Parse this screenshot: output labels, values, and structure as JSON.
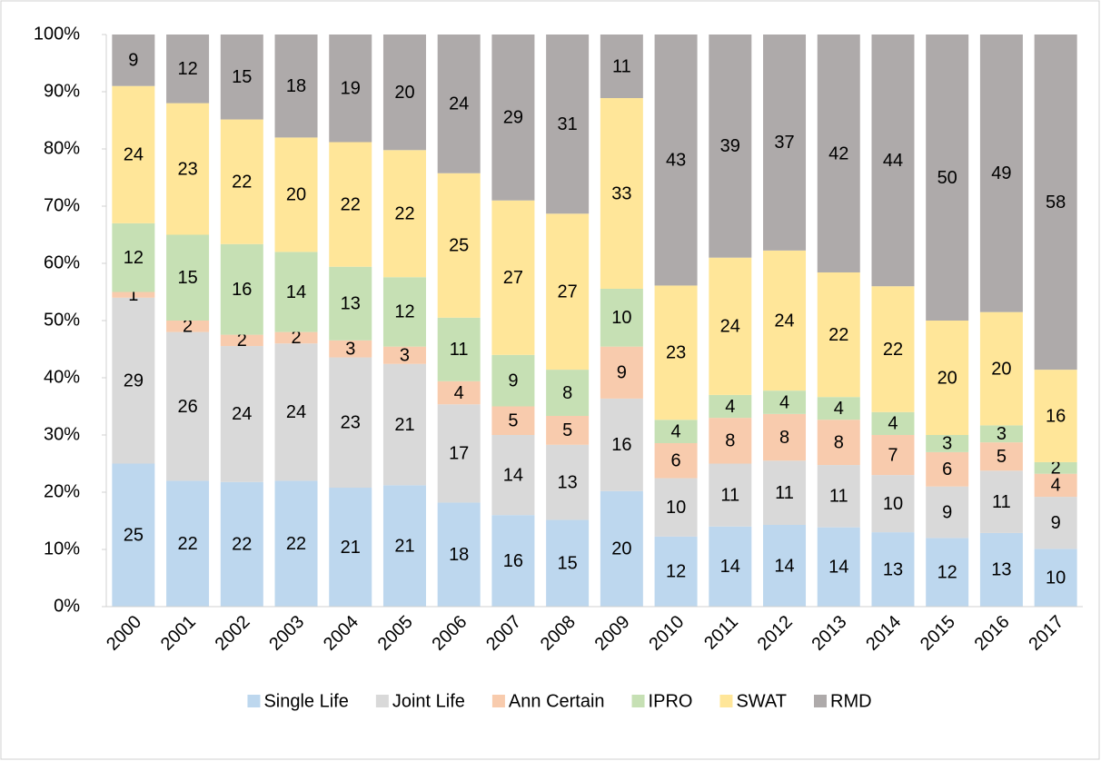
{
  "chart_data": {
    "type": "bar",
    "stack": "percent",
    "categories": [
      "2000",
      "2001",
      "2002",
      "2003",
      "2004",
      "2005",
      "2006",
      "2007",
      "2008",
      "2009",
      "2010",
      "2011",
      "2012",
      "2013",
      "2014",
      "2015",
      "2016",
      "2017"
    ],
    "series": [
      {
        "name": "Single Life",
        "color": "#bdd7ee",
        "values": [
          25,
          22,
          22,
          22,
          21,
          21,
          18,
          16,
          15,
          20,
          12,
          14,
          14,
          14,
          13,
          12,
          13,
          10
        ]
      },
      {
        "name": "Joint Life",
        "color": "#d9d9d9",
        "values": [
          29,
          26,
          24,
          24,
          23,
          21,
          17,
          14,
          13,
          16,
          10,
          11,
          11,
          11,
          10,
          9,
          11,
          9
        ]
      },
      {
        "name": "Ann Certain",
        "color": "#f8cbad",
        "values": [
          1,
          2,
          2,
          2,
          3,
          3,
          4,
          5,
          5,
          9,
          6,
          8,
          8,
          8,
          7,
          6,
          5,
          4
        ]
      },
      {
        "name": "IPRO",
        "color": "#c6e0b4",
        "values": [
          12,
          15,
          16,
          14,
          13,
          12,
          11,
          9,
          8,
          10,
          4,
          4,
          4,
          4,
          4,
          3,
          3,
          2
        ]
      },
      {
        "name": "SWAT",
        "color": "#ffe699",
        "values": [
          24,
          23,
          22,
          20,
          22,
          22,
          25,
          27,
          27,
          33,
          23,
          24,
          24,
          22,
          22,
          20,
          20,
          16
        ]
      },
      {
        "name": "RMD",
        "color": "#aeaaaa",
        "values": [
          9,
          12,
          15,
          18,
          19,
          20,
          24,
          29,
          31,
          11,
          43,
          39,
          37,
          42,
          44,
          50,
          49,
          58
        ]
      }
    ],
    "ylim": [
      0,
      100
    ],
    "yticks": [
      {
        "value": 0,
        "label": "0%"
      },
      {
        "value": 10,
        "label": "10%"
      },
      {
        "value": 20,
        "label": "20%"
      },
      {
        "value": 30,
        "label": "30%"
      },
      {
        "value": 40,
        "label": "40%"
      },
      {
        "value": 50,
        "label": "50%"
      },
      {
        "value": 60,
        "label": "60%"
      },
      {
        "value": 70,
        "label": "70%"
      },
      {
        "value": 80,
        "label": "80%"
      },
      {
        "value": 90,
        "label": "90%"
      },
      {
        "value": 100,
        "label": "100%"
      }
    ],
    "grid": false,
    "legend": "bottom"
  }
}
